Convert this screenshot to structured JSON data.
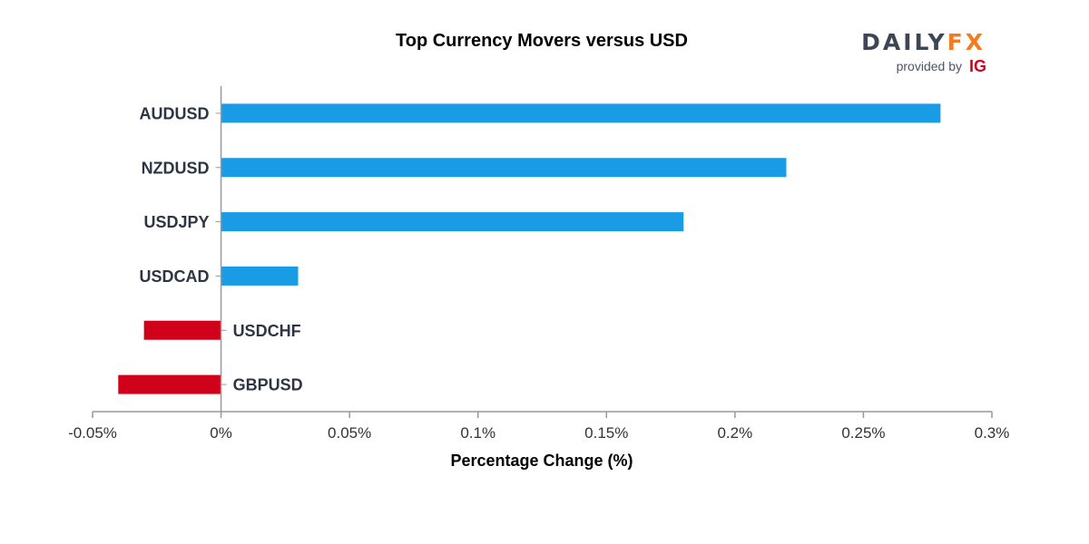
{
  "logo": {
    "daily": "DAILY",
    "fx": "FX",
    "provided_by": "provided by",
    "ig": "IG"
  },
  "colors": {
    "positive": "#1a9be6",
    "negative": "#d0021b",
    "axis": "#999999",
    "logo_daily": "#3d4656",
    "logo_fx": "#f47b20",
    "logo_ig": "#d0021b"
  },
  "chart_data": {
    "type": "bar",
    "orientation": "horizontal",
    "title": "Top Currency Movers versus USD",
    "xlabel": "Percentage Change (%)",
    "ylabel": "",
    "categories": [
      "AUDUSD",
      "NZDUSD",
      "USDJPY",
      "USDCAD",
      "USDCHF",
      "GBPUSD"
    ],
    "values": [
      0.28,
      0.22,
      0.18,
      0.03,
      -0.03,
      -0.04
    ],
    "xlim": [
      -0.05,
      0.3
    ],
    "xticks": [
      -0.05,
      0,
      0.05,
      0.1,
      0.15,
      0.2,
      0.25,
      0.3
    ],
    "xtick_labels": [
      "-0.05%",
      "0%",
      "0.05%",
      "0.1%",
      "0.15%",
      "0.2%",
      "0.25%",
      "0.3%"
    ],
    "grid": false,
    "legend": "none"
  }
}
